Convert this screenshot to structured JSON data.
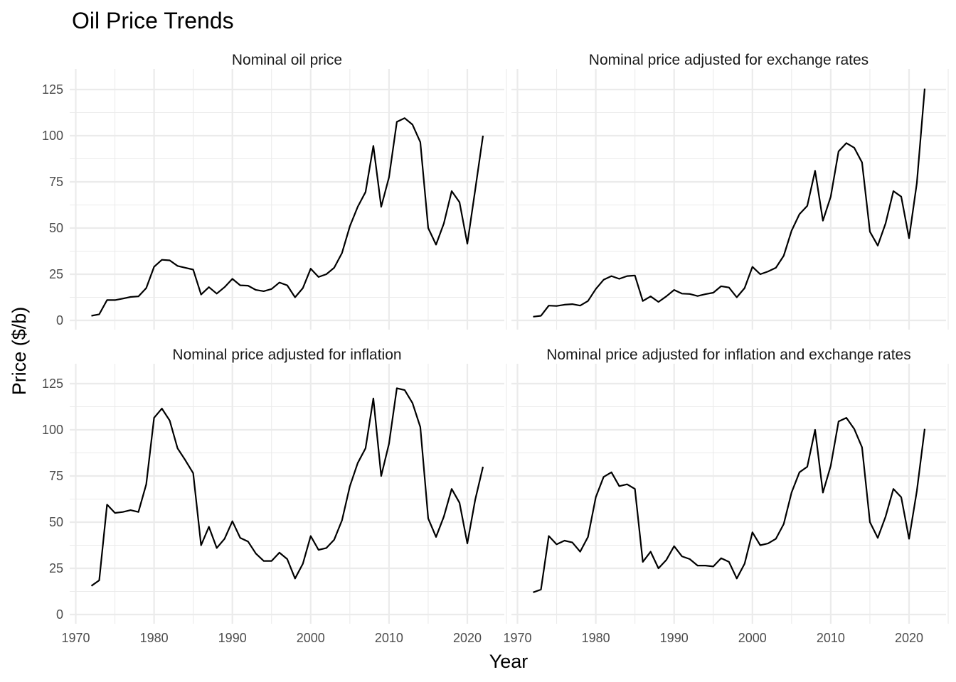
{
  "chart_data": {
    "type": "line",
    "title": "Oil Price Trends",
    "xlabel": "Year",
    "ylabel": "Price ($/b)",
    "xlim": [
      1970,
      2022
    ],
    "ylim": [
      0,
      125
    ],
    "x_ticks": [
      1970,
      1980,
      1990,
      2000,
      2010,
      2020
    ],
    "y_ticks": [
      0,
      25,
      50,
      75,
      100,
      125
    ],
    "grid": true,
    "years": [
      1972,
      1973,
      1974,
      1975,
      1976,
      1977,
      1978,
      1979,
      1980,
      1981,
      1982,
      1983,
      1984,
      1985,
      1986,
      1987,
      1988,
      1989,
      1990,
      1991,
      1992,
      1993,
      1994,
      1995,
      1996,
      1997,
      1998,
      1999,
      2000,
      2001,
      2002,
      2003,
      2004,
      2005,
      2006,
      2007,
      2008,
      2009,
      2010,
      2011,
      2012,
      2013,
      2014,
      2015,
      2016,
      2017,
      2018,
      2019,
      2020,
      2021,
      2022
    ],
    "panels": [
      {
        "name": "Nominal oil price",
        "values": [
          2.5,
          3.3,
          11,
          11,
          11.8,
          12.7,
          13,
          17.5,
          29,
          32.8,
          32.5,
          29.5,
          28.5,
          27.5,
          14,
          18,
          14.5,
          18,
          22.5,
          19,
          18.8,
          16.5,
          15.8,
          17,
          20.5,
          19,
          12.5,
          17.5,
          28,
          23.5,
          25,
          28.5,
          36.5,
          51,
          61.5,
          69.5,
          94.5,
          61.5,
          77.5,
          107.5,
          109.5,
          106,
          96.5,
          50,
          41,
          52.5,
          70,
          64,
          41.5,
          70.5,
          100
        ]
      },
      {
        "name": "Nominal price adjusted for exchange rates",
        "values": [
          2,
          2.5,
          8,
          7.8,
          8.5,
          8.8,
          8,
          10.5,
          17,
          22,
          24,
          22.5,
          24,
          24.3,
          10.5,
          13,
          10,
          13,
          16.5,
          14.5,
          14.3,
          13.2,
          14.2,
          15,
          18.5,
          17.8,
          12.5,
          17.5,
          29,
          25,
          26.5,
          28.5,
          35,
          48.5,
          57.5,
          62,
          81,
          54,
          67,
          91.5,
          96,
          93.5,
          85.5,
          48,
          40.5,
          52.5,
          70,
          67,
          44.5,
          74.5,
          125.5
        ]
      },
      {
        "name": "Nominal price adjusted for inflation",
        "values": [
          15.5,
          18.5,
          59.5,
          55,
          55.5,
          56.5,
          55.5,
          70.5,
          106.5,
          111.5,
          105,
          90,
          83.5,
          76.5,
          37.5,
          47.5,
          36,
          41,
          50.5,
          41.5,
          39.5,
          33,
          29,
          29,
          33.5,
          30,
          19.5,
          27.5,
          42.5,
          35,
          36,
          40.5,
          51,
          69.5,
          82,
          90,
          117,
          75,
          92.5,
          122.5,
          121.5,
          114.5,
          101.5,
          52,
          42,
          53,
          68,
          60.5,
          38.5,
          62,
          80
        ]
      },
      {
        "name": "Nominal price adjusted for inflation and exchange rates",
        "values": [
          12,
          13.5,
          42.5,
          38,
          40,
          39,
          34,
          42,
          63.5,
          74.5,
          77,
          69.5,
          70.5,
          68,
          28.5,
          34,
          25,
          29.5,
          37,
          31.5,
          30,
          26.5,
          26.5,
          26,
          30.5,
          28.5,
          19.5,
          27.5,
          44.5,
          37.5,
          38.5,
          41,
          49,
          66,
          77,
          80,
          100,
          66,
          80.5,
          104.5,
          106.5,
          100.5,
          90.5,
          50,
          41.5,
          53,
          68,
          63.5,
          41,
          67,
          100.5
        ]
      }
    ]
  }
}
